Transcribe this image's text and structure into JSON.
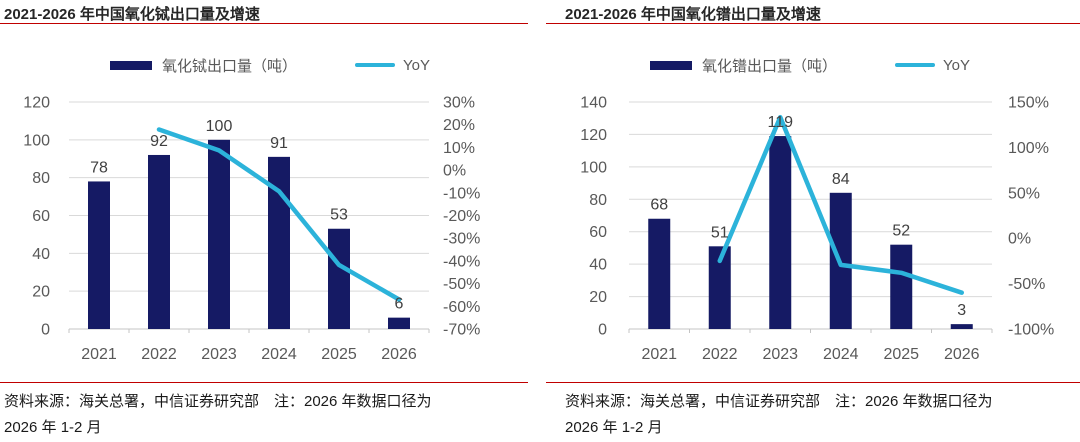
{
  "colors": {
    "bar": "#151A64",
    "line": "#2CB3DA",
    "rule": "#C00000",
    "grid": "#D9D9D9",
    "baseline": "#C4C4C4",
    "axis_text": "#595959",
    "label_text": "#404040",
    "title_text": "#262626",
    "footer_text": "#1A1A1A"
  },
  "chart_data": [
    {
      "type": "bar+line",
      "title": "2021-2026 年中国氧化铽出口量及增速",
      "categories": [
        "2021",
        "2022",
        "2023",
        "2024",
        "2025",
        "2026"
      ],
      "series": [
        {
          "name": "氧化铽出口量（吨）",
          "type": "bar",
          "axis": "left",
          "values": [
            78,
            92,
            100,
            91,
            53,
            6
          ]
        },
        {
          "name": "YoY",
          "type": "line",
          "axis": "right",
          "values": [
            null,
            17.9,
            8.7,
            -9.3,
            -41.8,
            -57
          ]
        }
      ],
      "bar_labels": [
        "78",
        "92",
        "100",
        "91",
        "53",
        "6"
      ],
      "left_axis": {
        "min": 0,
        "max": 120,
        "step": 20
      },
      "right_axis": {
        "min": -70,
        "max": 30,
        "step": 10,
        "suffix": "%"
      },
      "legend_position": "top",
      "grid": "horizontal",
      "footer_line1": "资料来源：海关总署，中信证券研究部　注：2026 年数据口径为",
      "footer_line2": "2026 年 1-2 月"
    },
    {
      "type": "bar+line",
      "title": "2021-2026 年中国氧化镨出口量及增速",
      "categories": [
        "2021",
        "2022",
        "2023",
        "2024",
        "2025",
        "2026"
      ],
      "series": [
        {
          "name": "氧化镨出口量（吨）",
          "type": "bar",
          "axis": "left",
          "values": [
            68,
            51,
            119,
            84,
            52,
            3
          ]
        },
        {
          "name": "YoY",
          "type": "line",
          "axis": "right",
          "values": [
            null,
            -25,
            133.3,
            -29.4,
            -38.1,
            -60
          ]
        }
      ],
      "bar_labels": [
        "68",
        "51",
        "119",
        "84",
        "52",
        "3"
      ],
      "left_axis": {
        "min": 0,
        "max": 140,
        "step": 20
      },
      "right_axis": {
        "min": -100,
        "max": 150,
        "step": 50,
        "suffix": "%"
      },
      "legend_position": "top",
      "grid": "horizontal",
      "footer_line1": "资料来源：海关总署，中信证券研究部　注：2026 年数据口径为",
      "footer_line2": "2026 年 1-2 月"
    }
  ]
}
